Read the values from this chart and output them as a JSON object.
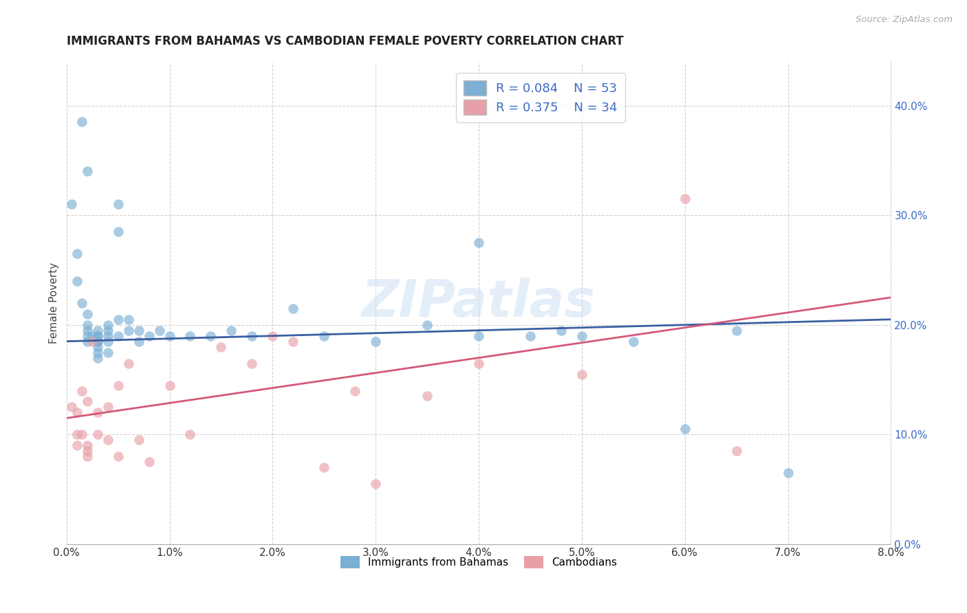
{
  "title": "IMMIGRANTS FROM BAHAMAS VS CAMBODIAN FEMALE POVERTY CORRELATION CHART",
  "source": "Source: ZipAtlas.com",
  "ylabel": "Female Poverty",
  "legend_label1": "Immigrants from Bahamas",
  "legend_label2": "Cambodians",
  "R1": 0.084,
  "N1": 53,
  "R2": 0.375,
  "N2": 34,
  "xlim": [
    0.0,
    0.08
  ],
  "ylim": [
    0.0,
    0.44
  ],
  "xticks": [
    0.0,
    0.01,
    0.02,
    0.03,
    0.04,
    0.05,
    0.06,
    0.07,
    0.08
  ],
  "yticks": [
    0.0,
    0.1,
    0.2,
    0.3,
    0.4
  ],
  "blue_color": "#7bafd4",
  "blue_line_color": "#3a5fa0",
  "pink_color": "#e8a0a8",
  "pink_line_color": "#d45878",
  "text_color": "#3a6ac8",
  "watermark": "ZIPatlas",
  "blue_scatter_x": [
    0.0015,
    0.002,
    0.0005,
    0.001,
    0.001,
    0.0015,
    0.002,
    0.002,
    0.002,
    0.002,
    0.002,
    0.0025,
    0.003,
    0.003,
    0.003,
    0.003,
    0.003,
    0.003,
    0.003,
    0.003,
    0.004,
    0.004,
    0.004,
    0.004,
    0.004,
    0.005,
    0.005,
    0.005,
    0.005,
    0.006,
    0.006,
    0.007,
    0.007,
    0.008,
    0.009,
    0.01,
    0.012,
    0.014,
    0.016,
    0.018,
    0.022,
    0.025,
    0.03,
    0.035,
    0.04,
    0.04,
    0.045,
    0.048,
    0.05,
    0.055,
    0.06,
    0.065,
    0.07
  ],
  "blue_scatter_y": [
    0.385,
    0.34,
    0.31,
    0.265,
    0.24,
    0.22,
    0.21,
    0.2,
    0.195,
    0.19,
    0.185,
    0.19,
    0.195,
    0.19,
    0.19,
    0.185,
    0.185,
    0.18,
    0.175,
    0.17,
    0.2,
    0.195,
    0.19,
    0.185,
    0.175,
    0.31,
    0.285,
    0.205,
    0.19,
    0.205,
    0.195,
    0.195,
    0.185,
    0.19,
    0.195,
    0.19,
    0.19,
    0.19,
    0.195,
    0.19,
    0.215,
    0.19,
    0.185,
    0.2,
    0.275,
    0.19,
    0.19,
    0.195,
    0.19,
    0.185,
    0.105,
    0.195,
    0.065
  ],
  "pink_scatter_x": [
    0.0005,
    0.001,
    0.001,
    0.001,
    0.0015,
    0.0015,
    0.002,
    0.002,
    0.002,
    0.002,
    0.0025,
    0.003,
    0.003,
    0.004,
    0.004,
    0.005,
    0.005,
    0.006,
    0.007,
    0.008,
    0.01,
    0.012,
    0.015,
    0.018,
    0.02,
    0.022,
    0.025,
    0.028,
    0.03,
    0.035,
    0.04,
    0.05,
    0.06,
    0.065
  ],
  "pink_scatter_y": [
    0.125,
    0.12,
    0.1,
    0.09,
    0.14,
    0.1,
    0.13,
    0.09,
    0.085,
    0.08,
    0.185,
    0.12,
    0.1,
    0.125,
    0.095,
    0.145,
    0.08,
    0.165,
    0.095,
    0.075,
    0.145,
    0.1,
    0.18,
    0.165,
    0.19,
    0.185,
    0.07,
    0.14,
    0.055,
    0.135,
    0.165,
    0.155,
    0.315,
    0.085
  ],
  "blue_trend_x": [
    0.0,
    0.08
  ],
  "blue_trend_y": [
    0.185,
    0.205
  ],
  "pink_trend_x": [
    0.0,
    0.08
  ],
  "pink_trend_y": [
    0.115,
    0.225
  ]
}
